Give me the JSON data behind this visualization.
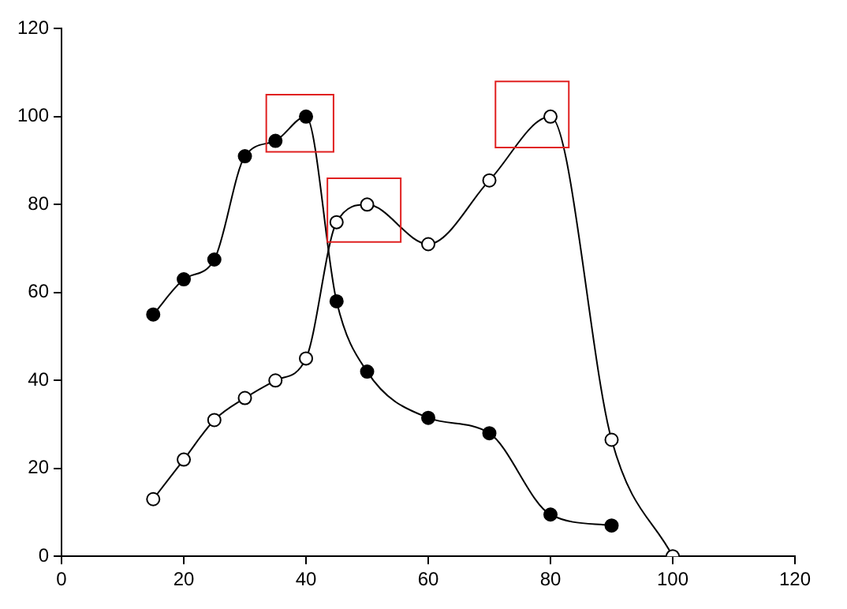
{
  "chart_data": {
    "type": "line",
    "xlim": [
      0,
      120
    ],
    "xticks": [
      0,
      20,
      40,
      60,
      80,
      100,
      120
    ],
    "ylim": [
      0,
      120
    ],
    "yticks": [
      0,
      20,
      40,
      60,
      80,
      100,
      120
    ],
    "grid": false,
    "legend": false,
    "marker": "circle",
    "series": [
      {
        "color": "#000000",
        "x": [
          15,
          20,
          25,
          30,
          35,
          40,
          45,
          50,
          60,
          70,
          80,
          90
        ],
        "values": [
          55,
          63,
          67.5,
          91,
          94.5,
          100,
          58,
          42,
          31.5,
          28,
          9.5,
          7
        ]
      },
      {
        "color": "#000000",
        "x": [
          15,
          20,
          25,
          30,
          35,
          40,
          45,
          50,
          60,
          70,
          80,
          90,
          100
        ],
        "values": [
          13,
          22,
          31,
          36,
          40,
          45,
          76,
          80,
          71,
          85.5,
          100,
          26.5,
          0
        ]
      }
    ]
  }
}
